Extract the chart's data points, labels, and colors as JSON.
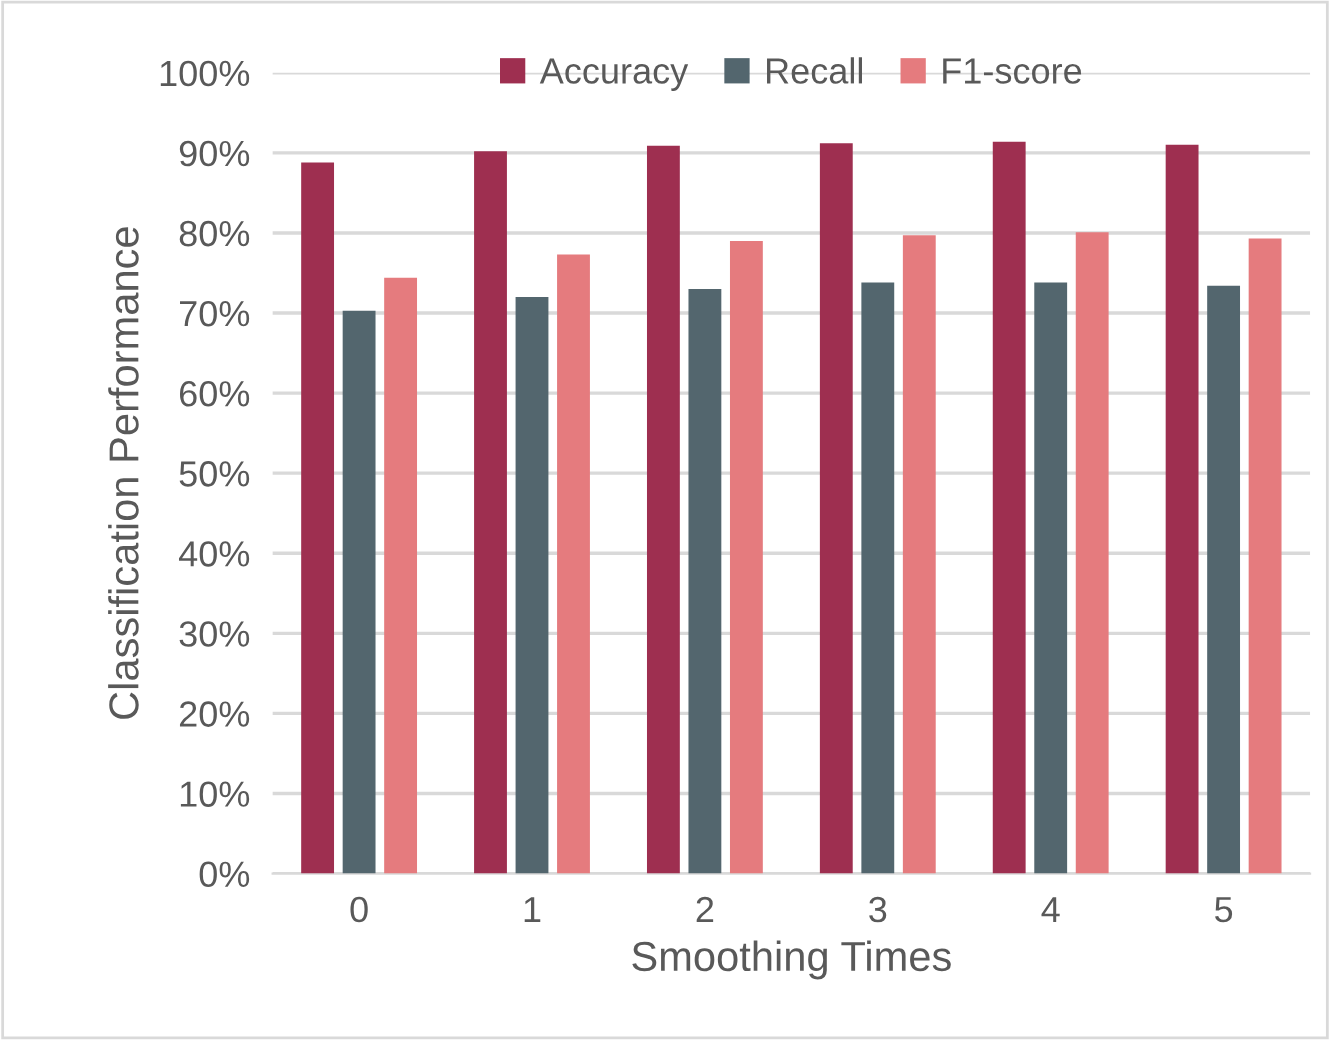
{
  "chart_data": {
    "type": "bar",
    "xlabel": "Smoothing Times",
    "ylabel": "Classification Performance",
    "categories": [
      "0",
      "1",
      "2",
      "3",
      "4",
      "5"
    ],
    "series": [
      {
        "name": "Accuracy",
        "color": "#9e2f50",
        "values": [
          88.8,
          90.2,
          90.9,
          91.2,
          91.4,
          91.0
        ]
      },
      {
        "name": "Recall",
        "color": "#53666e",
        "values": [
          70.3,
          72.0,
          73.0,
          73.8,
          73.8,
          73.4
        ]
      },
      {
        "name": "F1-score",
        "color": "#e57b7e",
        "values": [
          74.4,
          77.3,
          79.0,
          79.7,
          80.1,
          79.3
        ]
      }
    ],
    "ylim": [
      0,
      100
    ],
    "yticks": [
      {
        "value": 0,
        "label": "0%"
      },
      {
        "value": 10,
        "label": "10%"
      },
      {
        "value": 20,
        "label": "20%"
      },
      {
        "value": 30,
        "label": "30%"
      },
      {
        "value": 40,
        "label": "40%"
      },
      {
        "value": 50,
        "label": "50%"
      },
      {
        "value": 60,
        "label": "60%"
      },
      {
        "value": 70,
        "label": "70%"
      },
      {
        "value": 80,
        "label": "80%"
      },
      {
        "value": 90,
        "label": "90%"
      },
      {
        "value": 100,
        "label": "100%"
      }
    ],
    "grid": "y",
    "legend": "top"
  }
}
